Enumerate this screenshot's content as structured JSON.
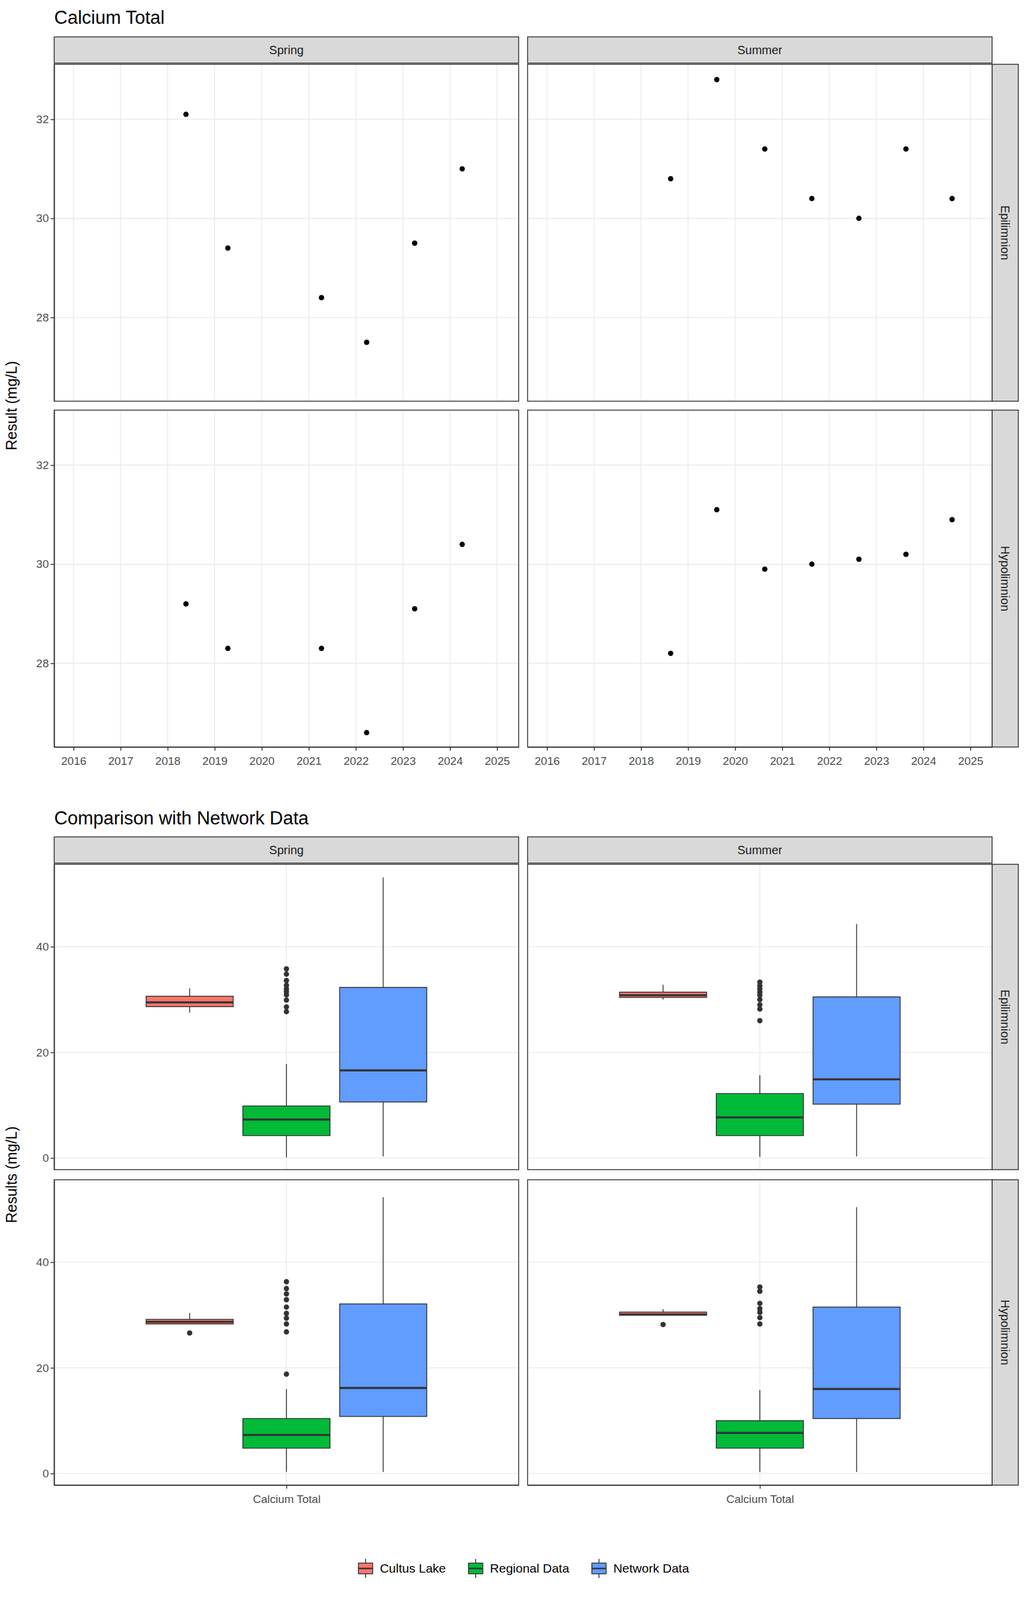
{
  "chart_data": [
    {
      "type": "scatter",
      "title": "Calcium Total",
      "y_label": "Result (mg/L)",
      "facets": {
        "columns": [
          "Spring",
          "Summer"
        ],
        "rows": [
          "Epilimnion",
          "Hypolimnion"
        ]
      },
      "xlim": [
        2015.59,
        2025.46
      ],
      "xticks": [
        2016,
        2017,
        2018,
        2019,
        2020,
        2021,
        2022,
        2023,
        2024,
        2025
      ],
      "ylim": [
        26.31,
        33.11
      ],
      "yticks": [
        28,
        30,
        32
      ],
      "grid": true,
      "color": "#000000",
      "panels": [
        [
          {
            "x": [
              2018.39,
              2019.28,
              2021.27,
              2022.23,
              2023.25,
              2024.26
            ],
            "values": [
              32.1,
              29.4,
              28.4,
              27.5,
              29.5,
              31.0
            ]
          },
          {
            "x": [
              2018.63,
              2019.61,
              2020.63,
              2021.63,
              2022.63,
              2023.63,
              2024.61
            ],
            "values": [
              30.8,
              32.8,
              31.4,
              30.4,
              30.0,
              31.4,
              30.4
            ]
          }
        ],
        [
          {
            "x": [
              2018.39,
              2019.28,
              2021.27,
              2022.23,
              2023.25,
              2024.26
            ],
            "values": [
              29.2,
              28.3,
              28.3,
              26.6,
              29.1,
              30.4
            ]
          },
          {
            "x": [
              2018.63,
              2019.61,
              2020.63,
              2021.63,
              2022.63,
              2023.63,
              2024.61
            ],
            "values": [
              28.2,
              31.1,
              29.9,
              30.0,
              30.1,
              30.2,
              30.9
            ]
          }
        ]
      ]
    },
    {
      "type": "boxplot",
      "title": "Comparison with Network Data",
      "y_label": "Results (mg/L)",
      "facets": {
        "columns": [
          "Spring",
          "Summer"
        ],
        "rows": [
          "Epilimnion",
          "Hypolimnion"
        ]
      },
      "categories": [
        "Calcium Total"
      ],
      "series": [
        {
          "name": "Cultus Lake",
          "color": "#F8766D"
        },
        {
          "name": "Regional Data",
          "color": "#00BA38"
        },
        {
          "name": "Network Data",
          "color": "#619CFF"
        }
      ],
      "ylim": [
        -2.2,
        55.6
      ],
      "yticks": [
        0,
        20,
        40
      ],
      "grid": true,
      "legend": "bottom",
      "panels": [
        [
          [
            {
              "whisker_low": 27.5,
              "q1": 28.65,
              "median": 29.45,
              "q3": 30.625,
              "whisker_high": 32.1,
              "outliers": []
            },
            {
              "whisker_low": 0.1,
              "q1": 4.25,
              "median": 7.3,
              "q3": 9.85,
              "whisker_high": 17.8,
              "outliers": [
                35.8,
                34.8,
                33.6,
                32.7,
                32.0,
                31.5,
                30.9,
                29.9,
                28.6,
                27.7
              ]
            },
            {
              "whisker_low": 0.3,
              "q1": 10.6,
              "median": 16.6,
              "q3": 32.3,
              "whisker_high": 53.1,
              "outliers": []
            }
          ],
          [
            {
              "whisker_low": 30.0,
              "q1": 30.4,
              "median": 30.8,
              "q3": 31.4,
              "whisker_high": 32.8,
              "outliers": []
            },
            {
              "whisker_low": 0.2,
              "q1": 4.25,
              "median": 7.7,
              "q3": 12.2,
              "whisker_high": 15.7,
              "outliers": [
                33.3,
                32.6,
                32.0,
                31.4,
                30.8,
                30.0,
                29.0,
                28.2,
                26.0
              ]
            },
            {
              "whisker_low": 0.3,
              "q1": 10.2,
              "median": 14.9,
              "q3": 30.5,
              "whisker_high": 44.3,
              "outliers": []
            }
          ]
        ],
        [
          [
            {
              "whisker_low": 28.3,
              "q1": 28.3,
              "median": 28.7,
              "q3": 29.175,
              "whisker_high": 30.4,
              "outliers": [
                26.6
              ]
            },
            {
              "whisker_low": 0.3,
              "q1": 4.8,
              "median": 7.3,
              "q3": 10.4,
              "whisker_high": 16.0,
              "outliers": [
                36.3,
                35.0,
                34.0,
                32.9,
                31.5,
                30.3,
                29.4,
                28.3,
                26.8,
                18.8
              ]
            },
            {
              "whisker_low": 0.3,
              "q1": 10.8,
              "median": 16.2,
              "q3": 32.1,
              "whisker_high": 52.3,
              "outliers": []
            }
          ],
          [
            {
              "whisker_low": 29.9,
              "q1": 29.95,
              "median": 30.1,
              "q3": 30.55,
              "whisker_high": 31.1,
              "outliers": [
                28.2
              ]
            },
            {
              "whisker_low": 0.3,
              "q1": 4.8,
              "median": 7.7,
              "q3": 10.0,
              "whisker_high": 15.8,
              "outliers": [
                35.3,
                34.5,
                32.2,
                31.2,
                30.5,
                29.5,
                28.3
              ]
            },
            {
              "whisker_low": 0.3,
              "q1": 10.4,
              "median": 16.0,
              "q3": 31.5,
              "whisker_high": 50.4,
              "outliers": []
            }
          ]
        ]
      ]
    }
  ]
}
